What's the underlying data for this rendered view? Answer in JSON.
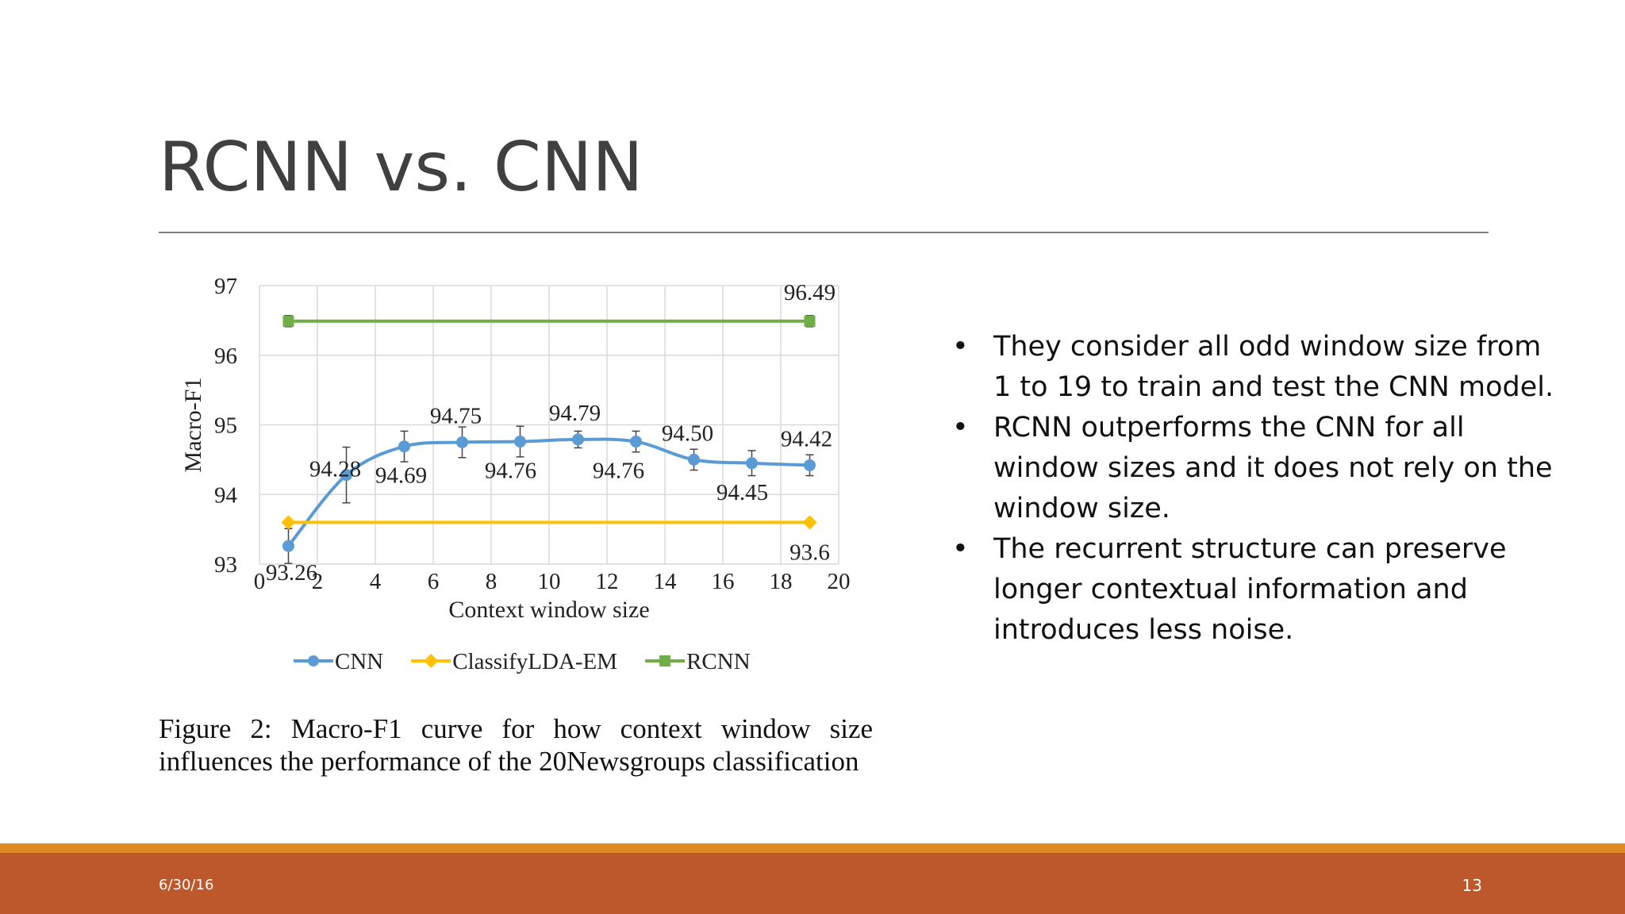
{
  "slide": {
    "title": "RCNN vs. CNN",
    "date": "6/30/16",
    "page_number": "13"
  },
  "caption": "Figure 2: Macro-F1 curve for how context window size influences the performance of the 20Newsgroups classification",
  "bullets": [
    "They consider all odd window size from 1 to 19 to train and test the CNN model.",
    "RCNN outperforms the CNN for all window sizes and it does not rely on the window size.",
    "The recurrent structure can preserve longer contextual information and introduces less noise."
  ],
  "colors": {
    "cnn": "#5b9bd5",
    "lda": "#ffc000",
    "rcnn": "#70ad47",
    "footer": "#bd582c",
    "footer_accent": "#e08a25"
  },
  "chart_data": {
    "type": "line",
    "xlabel": "Context window size",
    "ylabel": "Macro-F1",
    "xlim": [
      0,
      20
    ],
    "ylim": [
      93,
      97
    ],
    "xticks": [
      0,
      2,
      4,
      6,
      8,
      10,
      12,
      14,
      16,
      18,
      20
    ],
    "yticks": [
      93,
      94,
      95,
      96,
      97
    ],
    "grid": true,
    "legend": "bottom",
    "series": [
      {
        "name": "CNN",
        "x": [
          1,
          3,
          5,
          7,
          9,
          11,
          13,
          15,
          17,
          19
        ],
        "values": [
          93.26,
          94.28,
          94.69,
          94.75,
          94.76,
          94.79,
          94.76,
          94.5,
          94.45,
          94.42
        ],
        "labels": [
          "93.26",
          "94.28",
          "94.69",
          "94.75",
          "94.76",
          "94.79",
          "94.76",
          "94.50",
          "94.45",
          "94.42"
        ],
        "error": [
          0.25,
          0.4,
          0.22,
          0.22,
          0.22,
          0.12,
          0.15,
          0.15,
          0.18,
          0.15
        ],
        "marker": "circle",
        "color": "#5b9bd5"
      },
      {
        "name": "ClassifyLDA-EM",
        "x": [
          1,
          19
        ],
        "values": [
          93.6,
          93.6
        ],
        "labels": [
          "",
          "93.6"
        ],
        "marker": "diamond",
        "color": "#ffc000"
      },
      {
        "name": "RCNN",
        "x": [
          1,
          19
        ],
        "values": [
          96.49,
          96.49
        ],
        "labels": [
          "",
          "96.49"
        ],
        "error": [
          0.08,
          0.08
        ],
        "marker": "square",
        "color": "#70ad47"
      }
    ]
  }
}
